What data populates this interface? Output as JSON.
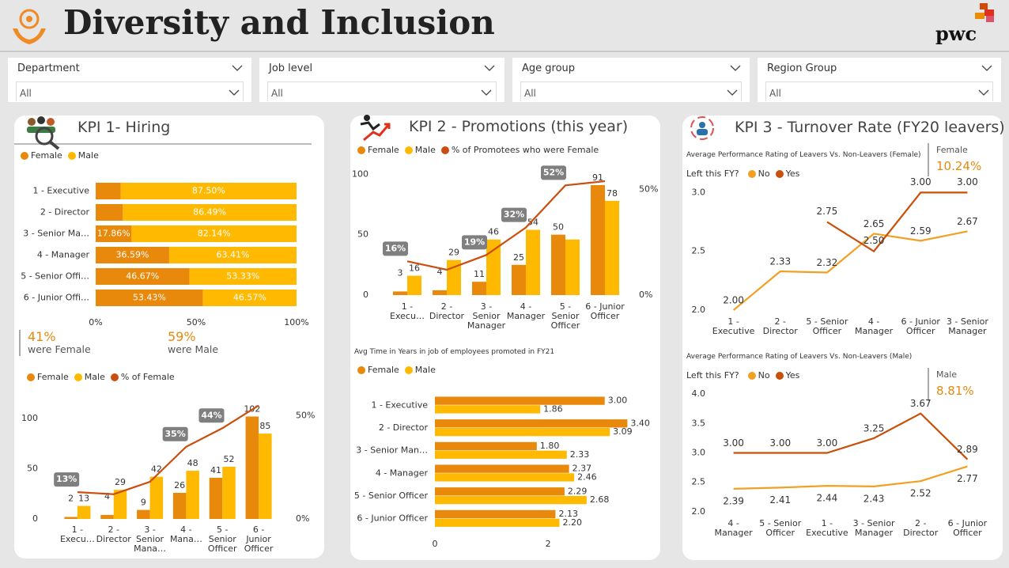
{
  "header": {
    "title": "Diversity and Inclusion",
    "logo": "pwc"
  },
  "filters": [
    {
      "label": "Department",
      "value": "All"
    },
    {
      "label": "Job level",
      "value": "All"
    },
    {
      "label": "Age group",
      "value": "All"
    },
    {
      "label": "Region Group",
      "value": "All"
    }
  ],
  "panels": [
    {
      "title": "KPI 1- Hiring"
    },
    {
      "title": "KPI 2 - Promotions (this year)"
    },
    {
      "title": "KPI 3 - Turnover Rate (FY20 leavers)"
    }
  ],
  "cards": [
    {
      "value": "41%",
      "label": "were Female"
    },
    {
      "value": "59%",
      "label": "were Male"
    },
    {
      "label": "Female",
      "value": "10.24%"
    },
    {
      "label": "Male",
      "value": "8.81%"
    }
  ],
  "chart_data": [
    {
      "type": "bar",
      "orientation": "horizontal",
      "stacked": true,
      "categories": [
        "1 - Executive",
        "2 - Director",
        "3 - Senior Ma…",
        "4 - Manager",
        "5 - Senior Offi…",
        "6 - Junior Offi…"
      ],
      "series": [
        {
          "name": "Female",
          "color": "#E8890C",
          "values": [
            12.5,
            13.51,
            17.86,
            36.59,
            46.67,
            53.43
          ],
          "value_labels": [
            null,
            null,
            "17.86%",
            "36.59%",
            "46.67%",
            "53.43%"
          ]
        },
        {
          "name": "Male",
          "color": "#FFB900",
          "values": [
            87.5,
            86.49,
            82.14,
            63.41,
            53.33,
            46.57
          ],
          "value_labels": [
            "87.50%",
            "86.49%",
            "82.14%",
            "63.41%",
            "53.33%",
            "46.57%"
          ]
        }
      ],
      "xlim": [
        0,
        100
      ],
      "xticks": [
        {
          "value": 0,
          "label": "0%"
        },
        {
          "value": 50,
          "label": "50%"
        },
        {
          "value": 100,
          "label": "100%"
        }
      ]
    },
    {
      "type": "combo",
      "categories": [
        "1 - Execu…",
        "2 - Director",
        "3 - Senior Mana…",
        "4 - Mana…",
        "5 - Senior Officer",
        "6 - Junior Officer"
      ],
      "series": [
        {
          "name": "Female",
          "color": "#E8890C",
          "kind": "bar",
          "values": [
            2,
            4,
            9,
            26,
            41,
            102
          ]
        },
        {
          "name": "Male",
          "color": "#FFB900",
          "kind": "bar",
          "values": [
            13,
            29,
            42,
            48,
            52,
            85
          ]
        },
        {
          "name": "% of Female",
          "color": "#CC4E0E",
          "kind": "line",
          "axis": "y2",
          "values": [
            13,
            12,
            18,
            35,
            44,
            55
          ],
          "value_labels": [
            "13%",
            null,
            null,
            "35%",
            "44%",
            null
          ]
        }
      ],
      "ylim": [
        0,
        115
      ],
      "yticks": [
        0,
        50,
        100
      ],
      "y2lim": [
        0,
        56
      ],
      "y2ticks": [
        {
          "value": 0,
          "label": "0%"
        },
        {
          "value": 50,
          "label": "50%"
        }
      ]
    },
    {
      "type": "combo",
      "categories": [
        "1 - Execu…",
        "2 - Director",
        "3 - Senior Manager",
        "4 - Manager",
        "5 - Senior Officer",
        "6 - Junior Officer"
      ],
      "series": [
        {
          "name": "Female",
          "color": "#E8890C",
          "kind": "bar",
          "values": [
            3,
            4,
            11,
            25,
            50,
            91
          ]
        },
        {
          "name": "Male",
          "color": "#FFB900",
          "kind": "bar",
          "values": [
            16,
            29,
            46,
            54,
            46,
            78
          ],
          "value_labels": [
            "16",
            "29",
            "46",
            "54",
            null,
            "78"
          ]
        },
        {
          "name": "% of Promotees who were Female",
          "color": "#CC4E0E",
          "kind": "line",
          "axis": "y2",
          "values": [
            16,
            12,
            19,
            32,
            52,
            54
          ],
          "value_labels": [
            "16%",
            null,
            "19%",
            "32%",
            "52%",
            null
          ]
        }
      ],
      "ylim": [
        0,
        110
      ],
      "yticks": [
        0,
        50,
        100
      ],
      "y2lim": [
        0,
        63
      ],
      "y2ticks": [
        {
          "value": 0,
          "label": "0%"
        },
        {
          "value": 50,
          "label": "50%"
        }
      ]
    },
    {
      "type": "bar",
      "orientation": "horizontal",
      "stacked": false,
      "title": "Avg Time in Years in job of employees promoted in FY21",
      "categories": [
        "1 - Executive",
        "2 - Director",
        "3 - Senior Man…",
        "4 - Manager",
        "5 - Senior Officer",
        "6 - Junior Officer"
      ],
      "series": [
        {
          "name": "Female",
          "color": "#E8890C",
          "values": [
            3.0,
            3.4,
            1.8,
            2.37,
            2.29,
            2.13
          ],
          "value_labels": [
            "3.00",
            "3.40",
            "1.80",
            "2.37",
            "2.29",
            "2.13"
          ]
        },
        {
          "name": "Male",
          "color": "#FFB900",
          "values": [
            1.86,
            3.09,
            2.33,
            2.46,
            2.68,
            2.2
          ],
          "value_labels": [
            "1.86",
            "3.09",
            "2.33",
            "2.46",
            "2.68",
            "2.20"
          ]
        }
      ],
      "xlim": [
        0,
        3.8
      ],
      "xticks": [
        0,
        2
      ]
    },
    {
      "type": "line",
      "title": "Average Performance Rating of Leavers Vs. Non-Leavers (Female)",
      "legend_title": "Left this FY?",
      "categories": [
        "1 - Executive",
        "2 - Director",
        "5 - Senior Officer",
        "4 - Manager",
        "6 - Junior Officer",
        "3 - Senior Manager"
      ],
      "series": [
        {
          "name": "No",
          "color": "#F2A024",
          "values": [
            2.0,
            2.33,
            2.32,
            2.65,
            2.59,
            2.67
          ],
          "value_labels": [
            "2.00",
            "2.33",
            "2.32",
            "2.65",
            "2.59",
            "2.67"
          ]
        },
        {
          "name": "Yes",
          "color": "#C8500A",
          "values": [
            null,
            null,
            2.75,
            2.5,
            3.0,
            3.0
          ],
          "value_labels": [
            null,
            null,
            "2.75",
            "2.50",
            "3.00",
            "3.00"
          ]
        }
      ],
      "ylim": [
        1.96,
        3.09
      ],
      "yticks": [
        {
          "value": 2,
          "label": "2.0"
        },
        {
          "value": 2.5,
          "label": "2.5"
        },
        {
          "value": 3,
          "label": "3.0"
        }
      ]
    },
    {
      "type": "line",
      "title": "Average Performance Rating of Leavers Vs. Non-Leavers (Male)",
      "legend_title": "Left this FY?",
      "categories": [
        "4 - Manager",
        "5 - Senior Officer",
        "1 - Executive",
        "3 - Senior Manager",
        "2 - Director",
        "6 - Junior Officer"
      ],
      "series": [
        {
          "name": "No",
          "color": "#F2A024",
          "values": [
            2.39,
            2.41,
            2.44,
            2.43,
            2.52,
            2.77
          ],
          "value_labels": [
            "2.39",
            "2.41",
            "2.44",
            "2.43",
            "2.52",
            "2.77"
          ]
        },
        {
          "name": "Yes",
          "color": "#C8500A",
          "values": [
            3.0,
            3.0,
            3.0,
            3.25,
            3.67,
            2.89
          ],
          "value_labels": [
            "3.00",
            "3.00",
            "3.00",
            "3.25",
            "3.67",
            "2.89"
          ]
        }
      ],
      "ylim": [
        1.89,
        4.11
      ],
      "yticks": [
        {
          "value": 2,
          "label": "2.0"
        },
        {
          "value": 2.5,
          "label": "2.5"
        },
        {
          "value": 3,
          "label": "3.0"
        },
        {
          "value": 3.5,
          "label": "3.5"
        },
        {
          "value": 4,
          "label": "4.0"
        }
      ]
    }
  ]
}
